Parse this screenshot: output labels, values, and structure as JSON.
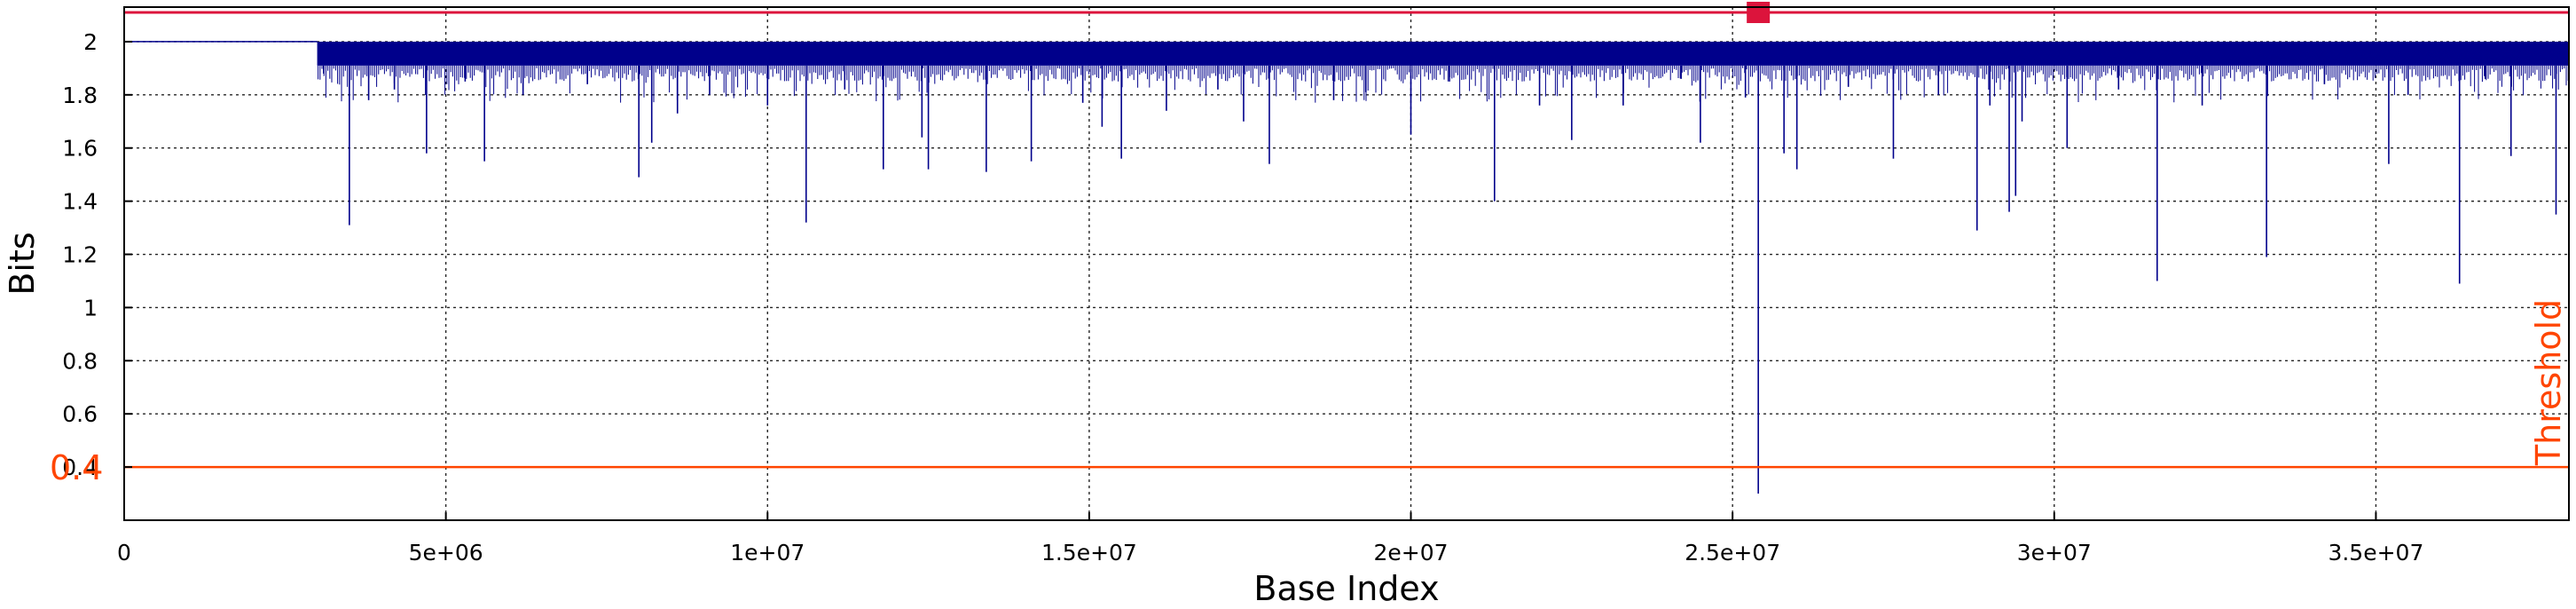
{
  "chart_data": {
    "type": "line",
    "xlabel": "Base Index",
    "ylabel": "Bits",
    "xlim": [
      0,
      38000000
    ],
    "ylim": [
      0.2,
      2.13
    ],
    "x_ticks": [
      0,
      5000000,
      10000000,
      15000000,
      20000000,
      25000000,
      30000000,
      35000000
    ],
    "x_tick_labels": [
      "0",
      "5e+06",
      "1e+07",
      "1.5e+07",
      "2e+07",
      "2.5e+07",
      "3e+07",
      "3.5e+07"
    ],
    "y_ticks": [
      0.4,
      0.6,
      0.8,
      1.0,
      1.2,
      1.4,
      1.6,
      1.8,
      2.0
    ],
    "y_tick_labels": [
      "0.4",
      "0.6",
      "0.8",
      "1",
      "1.2",
      "1.4",
      "1.6",
      "1.8",
      "2"
    ],
    "grid": true,
    "flat_segment": {
      "x_start": 0,
      "x_end": 3000000,
      "value": 2.0
    },
    "band": {
      "x_start": 3000000,
      "x_end": 38000000,
      "top": 2.0,
      "bottom": 1.91
    },
    "dips": [
      [
        3100000,
        1.88
      ],
      [
        3500000,
        1.31
      ],
      [
        3800000,
        1.78
      ],
      [
        4200000,
        1.82
      ],
      [
        4700000,
        1.58
      ],
      [
        5300000,
        1.85
      ],
      [
        5600000,
        1.55
      ],
      [
        6200000,
        1.8
      ],
      [
        7200000,
        1.84
      ],
      [
        8000000,
        1.49
      ],
      [
        8200000,
        1.62
      ],
      [
        8600000,
        1.73
      ],
      [
        9100000,
        1.8
      ],
      [
        10000000,
        1.76
      ],
      [
        10600000,
        1.32
      ],
      [
        11200000,
        1.82
      ],
      [
        11800000,
        1.52
      ],
      [
        12400000,
        1.64
      ],
      [
        12500000,
        1.52
      ],
      [
        13400000,
        1.51
      ],
      [
        14100000,
        1.55
      ],
      [
        14900000,
        1.77
      ],
      [
        15200000,
        1.68
      ],
      [
        15500000,
        1.56
      ],
      [
        16200000,
        1.74
      ],
      [
        17000000,
        1.82
      ],
      [
        17400000,
        1.7
      ],
      [
        17800000,
        1.54
      ],
      [
        18800000,
        1.78
      ],
      [
        19300000,
        1.81
      ],
      [
        20000000,
        1.65
      ],
      [
        20600000,
        1.85
      ],
      [
        21300000,
        1.4
      ],
      [
        22000000,
        1.76
      ],
      [
        22500000,
        1.63
      ],
      [
        23300000,
        1.76
      ],
      [
        24200000,
        1.86
      ],
      [
        24500000,
        1.62
      ],
      [
        25200000,
        1.79
      ],
      [
        25400000,
        0.3
      ],
      [
        25800000,
        1.58
      ],
      [
        26000000,
        1.52
      ],
      [
        26800000,
        1.83
      ],
      [
        27500000,
        1.56
      ],
      [
        28200000,
        1.8
      ],
      [
        28800000,
        1.29
      ],
      [
        29000000,
        1.76
      ],
      [
        29300000,
        1.36
      ],
      [
        29400000,
        1.42
      ],
      [
        29500000,
        1.7
      ],
      [
        30200000,
        1.6
      ],
      [
        31000000,
        1.82
      ],
      [
        31600000,
        1.1
      ],
      [
        32300000,
        1.76
      ],
      [
        33300000,
        1.19
      ],
      [
        34200000,
        1.84
      ],
      [
        35200000,
        1.54
      ],
      [
        35500000,
        1.8
      ],
      [
        36300000,
        1.09
      ],
      [
        36700000,
        1.86
      ],
      [
        37100000,
        1.57
      ],
      [
        37800000,
        1.35
      ]
    ],
    "threshold": {
      "value": 0.4,
      "label": "Threshold",
      "value_label": "0.4",
      "color": "#ff4500"
    },
    "top_line": {
      "value": 2.11,
      "color": "#dc143c"
    },
    "marker": {
      "x": 25400000,
      "y": 2.11,
      "color": "#dc143c"
    },
    "series_color": "#00008b"
  }
}
